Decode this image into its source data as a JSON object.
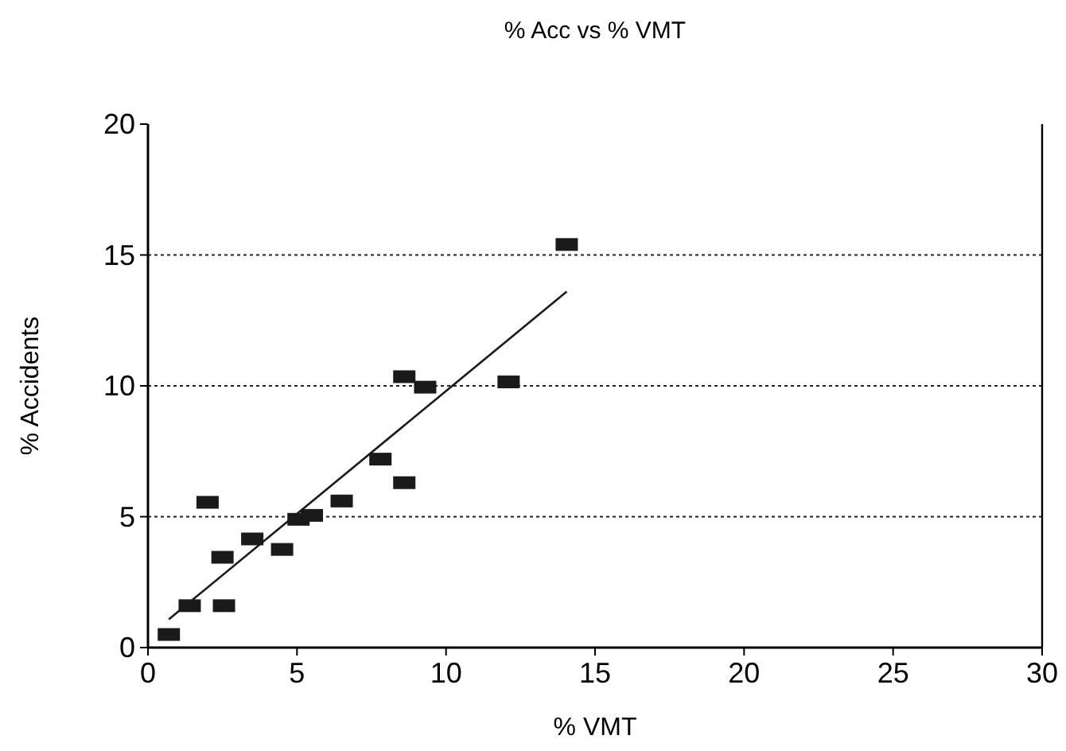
{
  "chart_data": {
    "type": "scatter",
    "title": "% Acc vs % VMT",
    "xlabel": "% VMT",
    "ylabel": "% Accidents",
    "xlim": [
      0,
      30
    ],
    "xticks": [
      0,
      5,
      10,
      15,
      20,
      25,
      30
    ],
    "ylim": [
      0,
      20
    ],
    "yticks": [
      0,
      5,
      10,
      15,
      20
    ],
    "grid": "y",
    "series": [
      {
        "marker": "square",
        "color": "#1a1a1a",
        "x": [
          0.7,
          1.4,
          2.0,
          2.5,
          2.55,
          3.5,
          4.5,
          5.05,
          5.5,
          6.5,
          7.8,
          8.6,
          8.6,
          9.3,
          12.1,
          14.05
        ],
        "values": [
          0.5,
          1.6,
          5.55,
          3.45,
          1.6,
          4.15,
          3.75,
          4.9,
          5.05,
          5.6,
          7.2,
          6.3,
          10.35,
          9.95,
          10.15,
          15.4
        ]
      },
      {
        "type": "line",
        "color": "#1a1a1a",
        "x": [
          0.7,
          14.05
        ],
        "values": [
          1.08,
          13.6
        ],
        "marker": "none",
        "line_style": "solid"
      }
    ]
  }
}
